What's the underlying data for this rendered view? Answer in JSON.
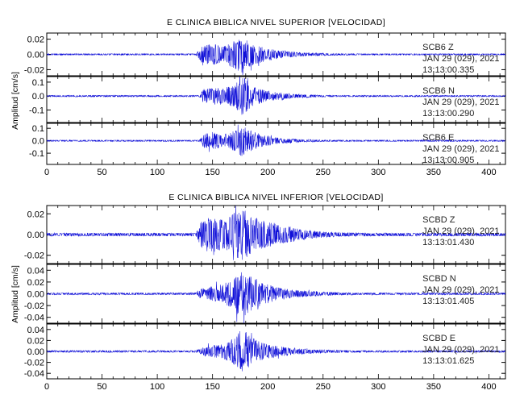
{
  "chart_data": [
    {
      "type": "line",
      "title": "E CLINICA BIBLICA NIVEL SUPERIOR [VELOCIDAD]",
      "ylabel": "Amplitud [cm/s]",
      "xlabel": "",
      "xlim": [
        0,
        415
      ],
      "xticks": [
        0,
        50,
        100,
        150,
        200,
        250,
        300,
        350,
        400
      ],
      "grid": false,
      "panels": [
        {
          "station": "SCB6",
          "component": "Z",
          "date": "JAN 29 (029), 2021",
          "time": "13:13:00.335",
          "ylim": [
            -0.028,
            0.028
          ],
          "yticks": [
            0.02,
            0.0,
            -0.02
          ],
          "ytick_labels": [
            "0.02",
            "0.00",
            "-0.02"
          ],
          "noise": 0.0006,
          "peak": 0.024,
          "envelope": [
            [
              135,
              0.002
            ],
            [
              140,
              0.45
            ],
            [
              150,
              0.55
            ],
            [
              160,
              0.4
            ],
            [
              170,
              0.75
            ],
            [
              177,
              1.0
            ],
            [
              185,
              0.6
            ],
            [
              195,
              0.4
            ],
            [
              210,
              0.2
            ],
            [
              230,
              0.08
            ],
            [
              260,
              0.02
            ],
            [
              290,
              0.0
            ]
          ]
        },
        {
          "station": "SCB6",
          "component": "N",
          "date": "JAN 29 (029), 2021",
          "time": "13:13:00.290",
          "ylim": [
            -0.19,
            0.14
          ],
          "yticks": [
            0.1,
            0.0,
            -0.1
          ],
          "ytick_labels": [
            "0.1",
            "0.0",
            "-0.1"
          ],
          "noise": 0.004,
          "peak": 0.14,
          "envelope": [
            [
              138,
              0.0
            ],
            [
              142,
              0.35
            ],
            [
              150,
              0.4
            ],
            [
              160,
              0.45
            ],
            [
              170,
              0.55
            ],
            [
              177,
              1.0
            ],
            [
              185,
              0.55
            ],
            [
              195,
              0.3
            ],
            [
              210,
              0.15
            ],
            [
              230,
              0.05
            ],
            [
              260,
              0.0
            ]
          ]
        },
        {
          "station": "SCB6",
          "component": "E",
          "date": "JAN 29 (029), 2021",
          "time": "13:13:00.905",
          "ylim": [
            -0.19,
            0.14
          ],
          "yticks": [
            0.1,
            0.0,
            -0.1
          ],
          "ytick_labels": [
            "0.1",
            "0.0",
            "-0.1"
          ],
          "noise": 0.004,
          "peak": 0.13,
          "envelope": [
            [
              138,
              0.0
            ],
            [
              142,
              0.4
            ],
            [
              150,
              0.5
            ],
            [
              160,
              0.35
            ],
            [
              170,
              0.6
            ],
            [
              177,
              1.0
            ],
            [
              185,
              0.6
            ],
            [
              195,
              0.35
            ],
            [
              210,
              0.15
            ],
            [
              230,
              0.05
            ],
            [
              260,
              0.0
            ]
          ]
        }
      ]
    },
    {
      "type": "line",
      "title": "E CLINICA BIBLICA NIVEL INFERIOR [VELOCIDAD]",
      "ylabel": "Amplitud [cm/s]",
      "xlabel": "",
      "xlim": [
        0,
        415
      ],
      "xticks": [
        0,
        50,
        100,
        150,
        200,
        250,
        300,
        350,
        400
      ],
      "grid": false,
      "panels": [
        {
          "station": "SCBD",
          "component": "Z",
          "date": "JAN 29 (029), 2021",
          "time": "13:13:01.430",
          "ylim": [
            -0.028,
            0.028
          ],
          "yticks": [
            0.02,
            0.0,
            -0.02
          ],
          "ytick_labels": [
            "0.02",
            "0.00",
            "-0.02"
          ],
          "noise": 0.0008,
          "peak": 0.024,
          "envelope": [
            [
              135,
              0.02
            ],
            [
              140,
              0.6
            ],
            [
              150,
              0.7
            ],
            [
              160,
              0.55
            ],
            [
              170,
              0.85
            ],
            [
              177,
              1.0
            ],
            [
              185,
              0.75
            ],
            [
              195,
              0.55
            ],
            [
              210,
              0.35
            ],
            [
              230,
              0.18
            ],
            [
              250,
              0.08
            ],
            [
              280,
              0.03
            ],
            [
              320,
              0.02
            ]
          ]
        },
        {
          "station": "SCBD",
          "component": "N",
          "date": "JAN 29 (029), 2021",
          "time": "13:13:01.405",
          "ylim": [
            -0.05,
            0.05
          ],
          "yticks": [
            0.04,
            0.02,
            0.0,
            -0.02,
            -0.04
          ],
          "ytick_labels": [
            "0.04",
            "0.02",
            "0.00",
            "-0.02",
            "-0.04"
          ],
          "noise": 0.0008,
          "peak": 0.04,
          "envelope": [
            [
              135,
              0.02
            ],
            [
              140,
              0.2
            ],
            [
              150,
              0.3
            ],
            [
              160,
              0.4
            ],
            [
              170,
              0.65
            ],
            [
              177,
              1.0
            ],
            [
              185,
              0.7
            ],
            [
              195,
              0.45
            ],
            [
              210,
              0.25
            ],
            [
              230,
              0.12
            ],
            [
              250,
              0.06
            ],
            [
              280,
              0.02
            ]
          ]
        },
        {
          "station": "SCBD",
          "component": "E",
          "date": "JAN 29 (029), 2021",
          "time": "13:13:01.625",
          "ylim": [
            -0.05,
            0.05
          ],
          "yticks": [
            0.04,
            0.02,
            0.0,
            -0.02,
            -0.04
          ],
          "ytick_labels": [
            "0.04",
            "0.02",
            "0.00",
            "-0.02",
            "-0.04"
          ],
          "noise": 0.0008,
          "peak": 0.042,
          "envelope": [
            [
              135,
              0.02
            ],
            [
              140,
              0.15
            ],
            [
              150,
              0.25
            ],
            [
              160,
              0.3
            ],
            [
              170,
              0.6
            ],
            [
              177,
              1.0
            ],
            [
              185,
              0.6
            ],
            [
              195,
              0.35
            ],
            [
              210,
              0.2
            ],
            [
              230,
              0.1
            ],
            [
              250,
              0.05
            ],
            [
              280,
              0.02
            ]
          ]
        }
      ]
    }
  ]
}
